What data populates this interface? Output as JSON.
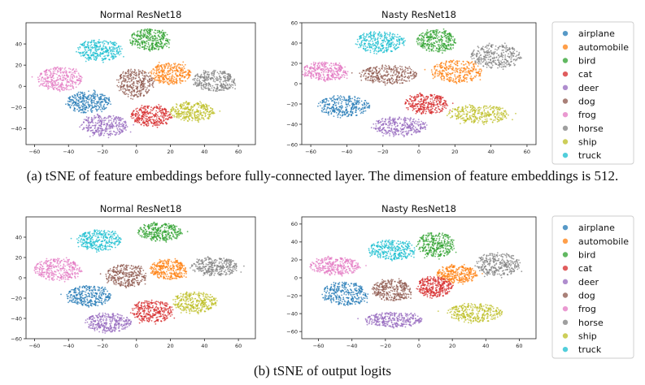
{
  "legend": {
    "labels": [
      "airplane",
      "automobile",
      "bird",
      "cat",
      "deer",
      "dog",
      "frog",
      "horse",
      "ship",
      "truck"
    ],
    "colors": [
      "#1f77b4",
      "#ff7f0e",
      "#2ca02c",
      "#d62728",
      "#9467bd",
      "#8c564b",
      "#e377c2",
      "#7f7f7f",
      "#bcbd22",
      "#17becf"
    ]
  },
  "captions": {
    "a": "(a)  tSNE of feature embeddings before fully-connected layer. The dimension of feature embeddings is 512.",
    "b": "(b)  tSNE of output logits"
  },
  "chart_data": [
    {
      "type": "scatter",
      "title": "Normal ResNet18",
      "xlim": [
        -65,
        70
      ],
      "ylim": [
        -55,
        60
      ],
      "xticks": [
        -60,
        -40,
        -20,
        0,
        20,
        40,
        60
      ],
      "yticks": [
        -40,
        -20,
        0,
        20,
        40
      ],
      "grid": false,
      "legend": "none",
      "clusters": [
        {
          "class": "airplane",
          "cx": -28,
          "cy": -15,
          "rx": 13,
          "ry": 10
        },
        {
          "class": "automobile",
          "cx": 20,
          "cy": 12,
          "rx": 12,
          "ry": 10
        },
        {
          "class": "bird",
          "cx": 8,
          "cy": 44,
          "rx": 12,
          "ry": 10
        },
        {
          "class": "cat",
          "cx": 9,
          "cy": -28,
          "rx": 12,
          "ry": 10
        },
        {
          "class": "deer",
          "cx": -19,
          "cy": -37,
          "rx": 14,
          "ry": 10
        },
        {
          "class": "dog",
          "cx": -1,
          "cy": 3,
          "rx": 11,
          "ry": 13
        },
        {
          "class": "frog",
          "cx": -45,
          "cy": 7,
          "rx": 13,
          "ry": 11
        },
        {
          "class": "horse",
          "cx": 46,
          "cy": 5,
          "rx": 13,
          "ry": 10
        },
        {
          "class": "ship",
          "cx": 33,
          "cy": -24,
          "rx": 13,
          "ry": 9
        },
        {
          "class": "truck",
          "cx": -22,
          "cy": 34,
          "rx": 13,
          "ry": 10
        }
      ]
    },
    {
      "type": "scatter",
      "title": "Nasty ResNet18",
      "xlim": [
        -65,
        65
      ],
      "ylim": [
        -60,
        60
      ],
      "xticks": [
        -60,
        -40,
        -20,
        0,
        20,
        40,
        60
      ],
      "yticks": [
        -60,
        -40,
        -20,
        0,
        20,
        40,
        60
      ],
      "grid": false,
      "legend": "none",
      "clusters": [
        {
          "class": "airplane",
          "cx": -42,
          "cy": -22,
          "rx": 15,
          "ry": 10
        },
        {
          "class": "automobile",
          "cx": 21,
          "cy": 12,
          "rx": 14,
          "ry": 11
        },
        {
          "class": "bird",
          "cx": 10,
          "cy": 42,
          "rx": 11,
          "ry": 11
        },
        {
          "class": "cat",
          "cx": 4,
          "cy": -20,
          "rx": 12,
          "ry": 10
        },
        {
          "class": "deer",
          "cx": -11,
          "cy": -42,
          "rx": 15,
          "ry": 9
        },
        {
          "class": "dog",
          "cx": -17,
          "cy": 9,
          "rx": 16,
          "ry": 9
        },
        {
          "class": "frog",
          "cx": -52,
          "cy": 12,
          "rx": 13,
          "ry": 9
        },
        {
          "class": "horse",
          "cx": 43,
          "cy": 27,
          "rx": 14,
          "ry": 12
        },
        {
          "class": "ship",
          "cx": 33,
          "cy": -30,
          "rx": 17,
          "ry": 9
        },
        {
          "class": "truck",
          "cx": -22,
          "cy": 41,
          "rx": 14,
          "ry": 10
        }
      ]
    },
    {
      "type": "scatter",
      "title": "Normal ResNet18",
      "xlim": [
        -65,
        70
      ],
      "ylim": [
        -60,
        60
      ],
      "xticks": [
        -60,
        -40,
        -20,
        0,
        20,
        40,
        60
      ],
      "yticks": [
        -60,
        -40,
        -20,
        0,
        20,
        40
      ],
      "grid": false,
      "legend": "none",
      "clusters": [
        {
          "class": "airplane",
          "cx": -28,
          "cy": -18,
          "rx": 13,
          "ry": 10
        },
        {
          "class": "automobile",
          "cx": 19,
          "cy": 8,
          "rx": 11,
          "ry": 10
        },
        {
          "class": "bird",
          "cx": 14,
          "cy": 45,
          "rx": 13,
          "ry": 9
        },
        {
          "class": "cat",
          "cx": 9,
          "cy": -33,
          "rx": 12,
          "ry": 11
        },
        {
          "class": "deer",
          "cx": -17,
          "cy": -44,
          "rx": 14,
          "ry": 9
        },
        {
          "class": "dog",
          "cx": -6,
          "cy": 2,
          "rx": 12,
          "ry": 11
        },
        {
          "class": "frog",
          "cx": -46,
          "cy": 8,
          "rx": 14,
          "ry": 11
        },
        {
          "class": "horse",
          "cx": 46,
          "cy": 11,
          "rx": 14,
          "ry": 9
        },
        {
          "class": "ship",
          "cx": 34,
          "cy": -24,
          "rx": 13,
          "ry": 10
        },
        {
          "class": "truck",
          "cx": -22,
          "cy": 37,
          "rx": 13,
          "ry": 10
        }
      ]
    },
    {
      "type": "scatter",
      "title": "Nasty ResNet18",
      "xlim": [
        -70,
        70
      ],
      "ylim": [
        -68,
        68
      ],
      "xticks": [
        -60,
        -40,
        -20,
        0,
        20,
        40,
        60
      ],
      "yticks": [
        -60,
        -40,
        -20,
        0,
        20,
        40,
        60
      ],
      "grid": false,
      "legend": "none",
      "clusters": [
        {
          "class": "airplane",
          "cx": -44,
          "cy": -18,
          "rx": 14,
          "ry": 13
        },
        {
          "class": "automobile",
          "cx": 23,
          "cy": 4,
          "rx": 12,
          "ry": 10
        },
        {
          "class": "bird",
          "cx": 10,
          "cy": 37,
          "rx": 11,
          "ry": 14
        },
        {
          "class": "cat",
          "cx": 9,
          "cy": -10,
          "rx": 11,
          "ry": 11
        },
        {
          "class": "deer",
          "cx": -15,
          "cy": -47,
          "rx": 17,
          "ry": 8
        },
        {
          "class": "dog",
          "cx": -16,
          "cy": -14,
          "rx": 12,
          "ry": 12
        },
        {
          "class": "frog",
          "cx": -50,
          "cy": 13,
          "rx": 15,
          "ry": 10
        },
        {
          "class": "horse",
          "cx": 47,
          "cy": 15,
          "rx": 13,
          "ry": 13
        },
        {
          "class": "ship",
          "cx": 33,
          "cy": -39,
          "rx": 17,
          "ry": 10
        },
        {
          "class": "truck",
          "cx": -16,
          "cy": 31,
          "rx": 14,
          "ry": 11
        }
      ]
    }
  ]
}
